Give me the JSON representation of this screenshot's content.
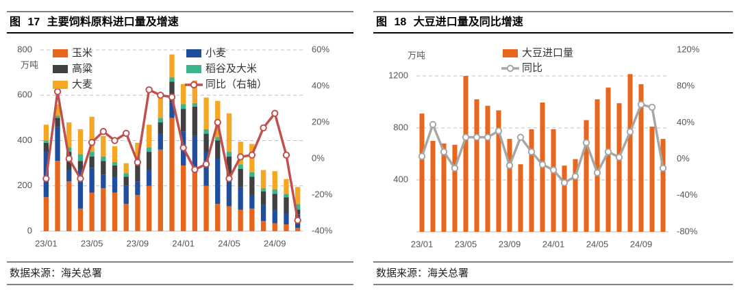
{
  "chart_data": [
    {
      "type": "bar",
      "stacked": true,
      "title": "图 17 主要饲料原料进口量及增速",
      "source": "数据来源：海关总署",
      "y_label": "万吨",
      "categories": [
        "23/01",
        null,
        null,
        null,
        "23/05",
        null,
        null,
        null,
        "23/09",
        null,
        null,
        null,
        "24/01",
        null,
        null,
        null,
        "24/05",
        null,
        null,
        null,
        "24/09",
        null,
        null
      ],
      "series": [
        {
          "name": "玉米",
          "color": "#e8661c",
          "values": [
            150,
            310,
            220,
            100,
            170,
            190,
            170,
            120,
            160,
            200,
            360,
            500,
            290,
            260,
            200,
            120,
            110,
            95,
            100,
            45,
            35,
            30,
            15
          ]
        },
        {
          "name": "小麦",
          "color": "#1f4e9c",
          "values": [
            200,
            150,
            50,
            170,
            110,
            60,
            70,
            80,
            60,
            70,
            70,
            70,
            150,
            160,
            150,
            200,
            130,
            100,
            60,
            70,
            60,
            50,
            60
          ]
        },
        {
          "name": "高粱",
          "color": "#404040",
          "values": [
            40,
            40,
            80,
            40,
            50,
            60,
            50,
            40,
            90,
            80,
            50,
            90,
            100,
            130,
            80,
            80,
            90,
            80,
            80,
            60,
            70,
            70,
            20
          ]
        },
        {
          "name": "稻谷及大米",
          "color": "#3cb48c",
          "values": [
            10,
            10,
            20,
            30,
            20,
            20,
            15,
            15,
            15,
            20,
            20,
            20,
            20,
            15,
            20,
            15,
            20,
            20,
            20,
            15,
            20,
            15,
            25
          ]
        },
        {
          "name": "大麦",
          "color": "#f5a623",
          "values": [
            70,
            50,
            110,
            110,
            155,
            90,
            70,
            45,
            65,
            100,
            90,
            100,
            90,
            100,
            140,
            160,
            170,
            100,
            125,
            80,
            80,
            65,
            75
          ]
        },
        {
          "name": "同比（右轴）",
          "color": "#c0504d",
          "type": "line",
          "axis": "y2",
          "values": [
            -11,
            37,
            0,
            -11,
            9,
            15,
            10,
            14,
            -2,
            38,
            35,
            34,
            6,
            -6,
            -3,
            20,
            -11,
            1,
            2,
            17,
            25,
            2,
            -34
          ]
        }
      ],
      "ylim": [
        0,
        800
      ],
      "yticks": [
        0,
        200,
        400,
        600,
        800
      ],
      "y2lim": [
        -40,
        60
      ],
      "y2ticks": [
        {
          "value": -40,
          "label": "-40%"
        },
        {
          "value": -20,
          "label": "-20%"
        },
        {
          "value": 0,
          "label": "0%"
        },
        {
          "value": 20,
          "label": "20%"
        },
        {
          "value": 40,
          "label": "40%"
        },
        {
          "value": 60,
          "label": "60%"
        }
      ],
      "grid": true
    },
    {
      "type": "bar",
      "title": "图 18 大豆进口量及同比增速",
      "source": "数据来源：海关总署",
      "y_label": "万吨",
      "categories": [
        "23/01",
        null,
        null,
        null,
        "23/05",
        null,
        null,
        null,
        "23/09",
        null,
        null,
        null,
        "24/01",
        null,
        null,
        null,
        "24/05",
        null,
        null,
        null,
        "24/09",
        null,
        null
      ],
      "series": [
        {
          "name": "大豆进口量",
          "color": "#e8661c",
          "values": [
            910,
            700,
            680,
            670,
            1200,
            1020,
            970,
            935,
            715,
            520,
            790,
            995,
            790,
            510,
            560,
            860,
            1020,
            1110,
            990,
            1214,
            1136,
            810,
            715
          ]
        },
        {
          "name": "同比",
          "color": "#a6a6a6",
          "type": "line",
          "axis": "y2",
          "values": [
            3,
            38,
            8,
            -10,
            24,
            24,
            24,
            31,
            -7,
            24,
            8,
            -6,
            -12,
            -26,
            -19,
            18,
            -15,
            8,
            2,
            30,
            60,
            57,
            -10
          ]
        }
      ],
      "ylim": [
        0,
        1400
      ],
      "yticks": [
        400,
        800,
        1200
      ],
      "y2lim": [
        -80,
        120
      ],
      "y2ticks": [
        {
          "value": -80,
          "label": "-80%"
        },
        {
          "value": -40,
          "label": "-40%"
        },
        {
          "value": 0,
          "label": "0%"
        },
        {
          "value": 40,
          "label": "40%"
        },
        {
          "value": 80,
          "label": "80%"
        },
        {
          "value": 120,
          "label": "120%"
        }
      ],
      "grid": true
    }
  ]
}
